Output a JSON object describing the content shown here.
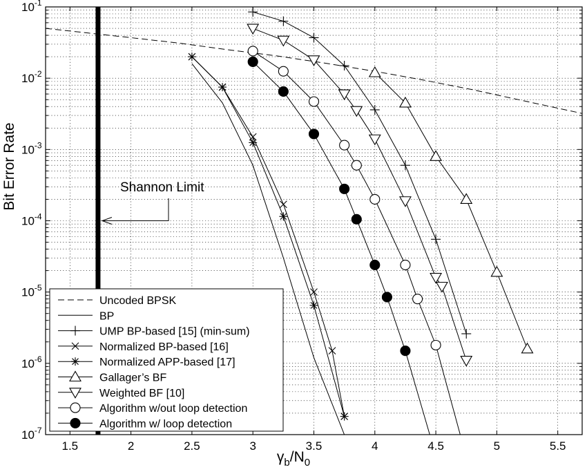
{
  "chart_data": {
    "type": "line",
    "xlabel": "γb/N0",
    "xlabel_main": "γ",
    "xlabel_sub1": "b",
    "xlabel_mid": "/N",
    "xlabel_sub2": "0",
    "ylabel": "Bit Error Rate",
    "xlim": [
      1.3,
      5.7
    ],
    "ylim": [
      1e-07,
      0.1
    ],
    "yscale": "log",
    "grid": true,
    "legend_position": "bottom-left",
    "x_ticks": [
      "1.5",
      "2",
      "2.5",
      "3",
      "3.5",
      "4",
      "4.5",
      "5",
      "5.5"
    ],
    "x_tick_values": [
      1.5,
      2,
      2.5,
      3,
      3.5,
      4,
      4.5,
      5,
      5.5
    ],
    "y_ticks": [
      {
        "value": 0.1,
        "base": "10",
        "exp": "-1"
      },
      {
        "value": 0.01,
        "base": "10",
        "exp": "-2"
      },
      {
        "value": 0.001,
        "base": "10",
        "exp": "-3"
      },
      {
        "value": 0.0001,
        "base": "10",
        "exp": "-4"
      },
      {
        "value": 1e-05,
        "base": "10",
        "exp": "-5"
      },
      {
        "value": 1e-06,
        "base": "10",
        "exp": "-6"
      },
      {
        "value": 1e-07,
        "base": "10",
        "exp": "-7"
      }
    ],
    "shannon_limit": {
      "x": 1.73,
      "label": "Shannon Limit",
      "label_x": 1.9,
      "label_y": 0.0002,
      "arrow_y": 0.0001
    },
    "series": [
      {
        "name": "Uncoded BPSK",
        "style": "dashed",
        "marker": "none",
        "x": [
          1.3,
          1.6,
          2.0,
          2.4,
          2.8,
          3.2,
          3.6,
          4.0,
          4.4,
          4.8,
          5.2,
          5.7
        ],
        "y": [
          0.05,
          0.044,
          0.037,
          0.031,
          0.025,
          0.0205,
          0.0162,
          0.0125,
          0.0094,
          0.0069,
          0.0049,
          0.0032
        ]
      },
      {
        "name": "BP",
        "style": "solid",
        "marker": "none",
        "x": [
          2.5,
          2.75,
          3.0,
          3.25,
          3.5,
          3.75
        ],
        "y": [
          0.016,
          0.0045,
          0.0006,
          3e-05,
          1.2e-06,
          1e-07
        ]
      },
      {
        "name": "UMP BP-based [15] (min-sum)",
        "style": "solid",
        "marker": "plus",
        "x": [
          3.0,
          3.25,
          3.5,
          3.75,
          4.0,
          4.25,
          4.5,
          4.75
        ],
        "y": [
          0.085,
          0.063,
          0.037,
          0.015,
          0.0036,
          0.0006,
          5.5e-05,
          2.6e-06
        ]
      },
      {
        "name": "Normalized BP-based [16]",
        "style": "solid",
        "marker": "x",
        "x": [
          2.5,
          2.75,
          3.0,
          3.25,
          3.5,
          3.65,
          3.75
        ],
        "y": [
          0.02,
          0.0075,
          0.0015,
          0.00017,
          1e-05,
          1.5e-06,
          1.8e-07
        ]
      },
      {
        "name": "Normalized APP-based [17]",
        "style": "solid",
        "marker": "star",
        "x": [
          2.5,
          2.75,
          3.0,
          3.25,
          3.5,
          3.75
        ],
        "y": [
          0.02,
          0.0075,
          0.00125,
          0.000115,
          6.5e-06,
          1.8e-07
        ]
      },
      {
        "name": "Gallager’s BF",
        "style": "solid",
        "marker": "triangle-up",
        "x": [
          4.0,
          4.25,
          4.5,
          4.75,
          5.0,
          5.25
        ],
        "y": [
          0.012,
          0.0045,
          0.0008,
          0.0002,
          1.9e-05,
          1.6e-06
        ]
      },
      {
        "name": "Weighted BF [10]",
        "style": "solid",
        "marker": "triangle-down",
        "x": [
          3.0,
          3.25,
          3.5,
          3.75,
          3.85,
          4.0,
          4.25,
          4.5,
          4.55,
          4.75
        ],
        "y": [
          0.05,
          0.034,
          0.018,
          0.006,
          0.0035,
          0.0014,
          0.00019,
          1.6e-05,
          1.2e-05,
          1.1e-06
        ]
      },
      {
        "name": "Algorithm w/out loop detection",
        "style": "solid",
        "marker": "circle-open",
        "x": [
          3.0,
          3.25,
          3.5,
          3.75,
          3.85,
          4.0,
          4.25,
          4.35,
          4.5
        ],
        "y": [
          0.024,
          0.0125,
          0.0047,
          0.00115,
          0.0006,
          0.0002,
          2.4e-05,
          8e-06,
          1.8e-06
        ]
      },
      {
        "name": "Algorithm w/ loop detection",
        "style": "solid",
        "marker": "circle-filled",
        "x": [
          3.0,
          3.25,
          3.5,
          3.75,
          3.85,
          4.0,
          4.1,
          4.25
        ],
        "y": [
          0.017,
          0.0065,
          0.00165,
          0.00028,
          0.000105,
          2.4e-05,
          8.5e-06,
          1.5e-06
        ]
      }
    ],
    "extra_lines": [
      {
        "for": "Algorithm w/ loop detection",
        "x": [
          4.25,
          4.45
        ],
        "y": [
          1.5e-06,
          1e-07
        ]
      },
      {
        "for": "Algorithm w/out loop detection",
        "x": [
          4.5,
          4.7
        ],
        "y": [
          1.8e-06,
          1e-07
        ]
      }
    ]
  }
}
